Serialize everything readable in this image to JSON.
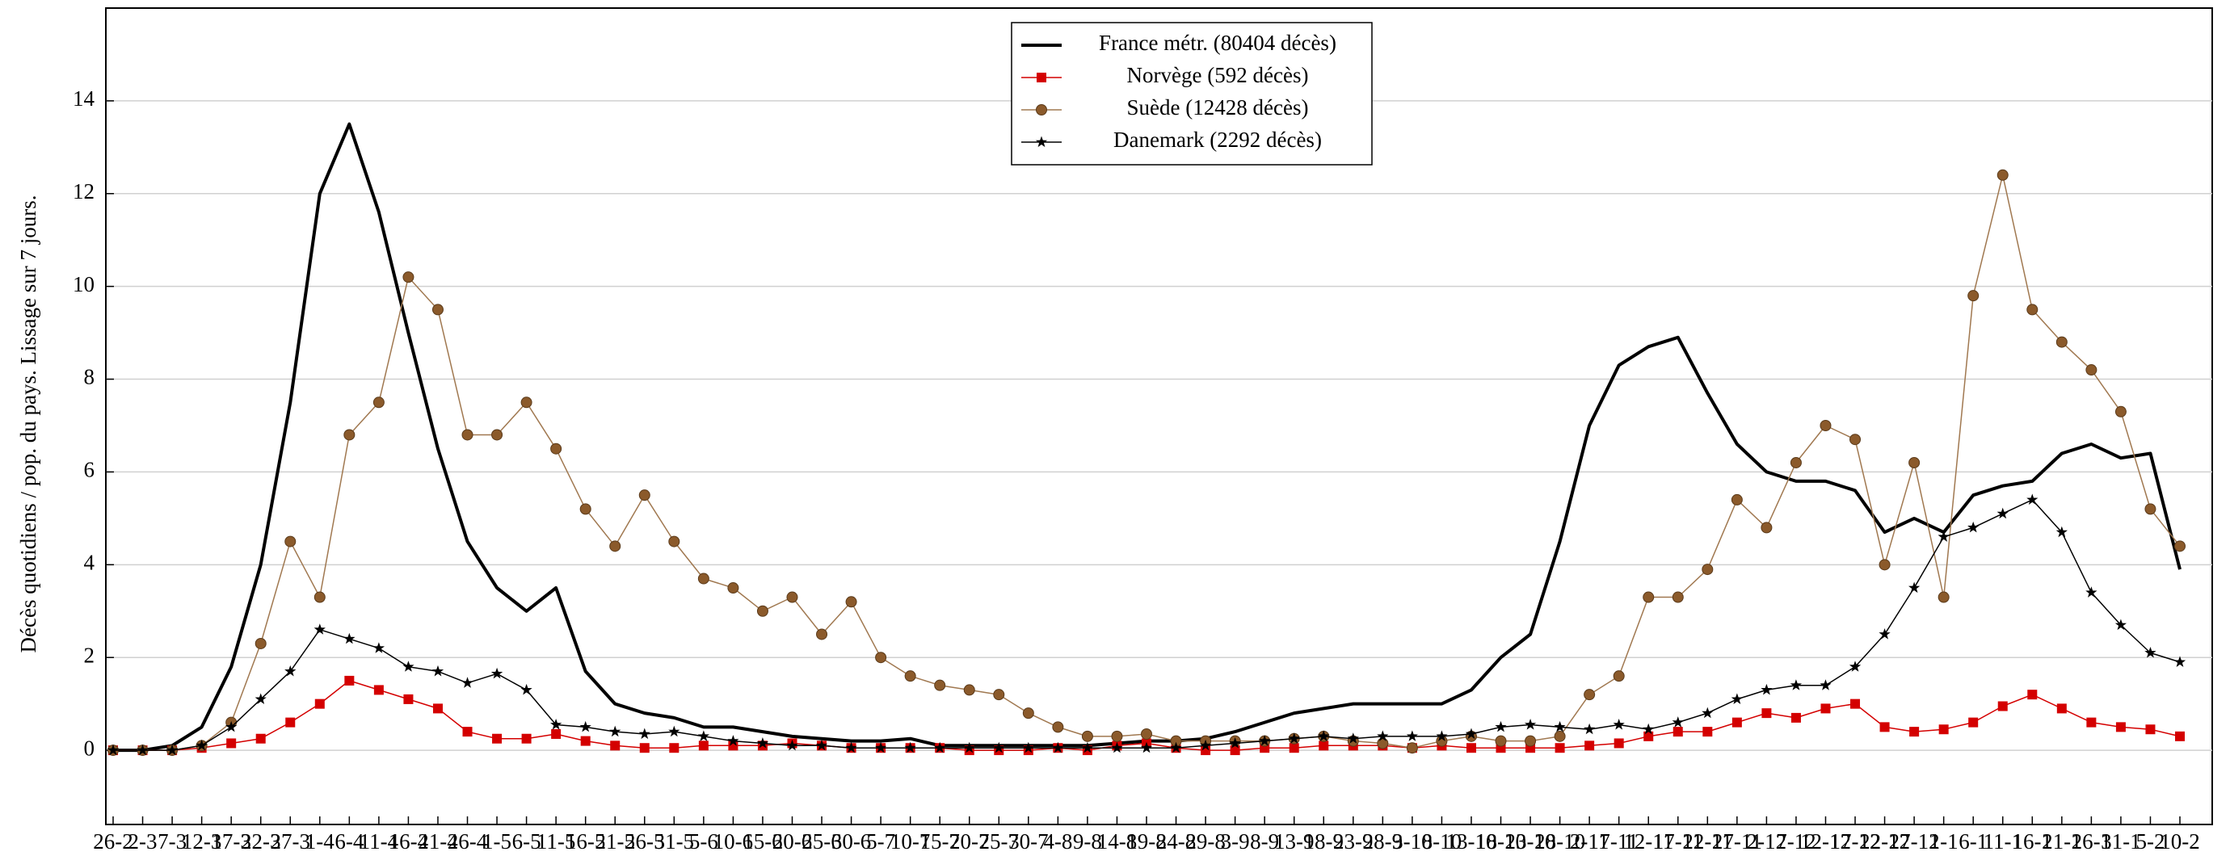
{
  "chart_data": {
    "type": "line",
    "ylabel": "Décès quotidiens / pop. du pays. Lissage sur 7 jours.",
    "categories": [
      "26-2",
      "2-3",
      "7-3",
      "12-3",
      "17-3",
      "22-3",
      "27-3",
      "1-4",
      "6-4",
      "11-4",
      "16-4",
      "21-4",
      "26-4",
      "1-5",
      "6-5",
      "11-5",
      "16-5",
      "21-5",
      "26-5",
      "31-5",
      "5-6",
      "10-6",
      "15-6",
      "20-6",
      "25-6",
      "30-6",
      "5-7",
      "10-7",
      "15-7",
      "20-7",
      "25-7",
      "30-7",
      "4-8",
      "9-8",
      "14-8",
      "19-8",
      "24-8",
      "29-8",
      "3-9",
      "8-9",
      "13-9",
      "18-9",
      "23-9",
      "28-9",
      "3-10",
      "8-10",
      "13-10",
      "18-10",
      "23-10",
      "28-10",
      "2-11",
      "7-11",
      "12-11",
      "17-11",
      "22-11",
      "27-11",
      "2-12",
      "7-12",
      "12-12",
      "17-12",
      "22-12",
      "27-12",
      "1-1",
      "6-1",
      "11-1",
      "16-1",
      "21-1",
      "26-1",
      "31-1",
      "5-2",
      "10-2"
    ],
    "series": [
      {
        "name": "France métr. (80404 décès)",
        "color": "#000000",
        "marker": "none",
        "values": [
          0,
          0,
          0.1,
          0.5,
          1.8,
          4,
          7.5,
          12,
          13.5,
          11.6,
          9,
          6.5,
          4.5,
          3.5,
          3,
          3.5,
          1.7,
          1,
          0.8,
          0.7,
          0.5,
          0.5,
          0.4,
          0.3,
          0.25,
          0.2,
          0.2,
          0.25,
          0.1,
          0.1,
          0.1,
          0.1,
          0.1,
          0.1,
          0.15,
          0.2,
          0.2,
          0.25,
          0.4,
          0.6,
          0.8,
          0.9,
          1.0,
          1.0,
          1.0,
          1.0,
          1.3,
          2.0,
          2.5,
          4.5,
          7.0,
          8.3,
          8.7,
          8.9,
          7.7,
          6.6,
          6.0,
          5.8,
          5.8,
          5.6,
          4.7,
          5.0,
          4.7,
          5.5,
          5.7,
          5.8,
          6.4,
          6.6,
          6.3,
          6.4,
          3.9
        ]
      },
      {
        "name": "Norvège (592 décès)",
        "color": "#d40000",
        "marker": "square",
        "values": [
          0,
          0,
          0,
          0.05,
          0.15,
          0.25,
          0.6,
          1.0,
          1.5,
          1.3,
          1.1,
          0.9,
          0.4,
          0.25,
          0.25,
          0.35,
          0.2,
          0.1,
          0.05,
          0.05,
          0.1,
          0.1,
          0.1,
          0.15,
          0.1,
          0.05,
          0.05,
          0.05,
          0.05,
          0,
          0,
          0,
          0.05,
          0,
          0.1,
          0.15,
          0.05,
          0,
          0,
          0.05,
          0.05,
          0.1,
          0.1,
          0.1,
          0.05,
          0.1,
          0.05,
          0.05,
          0.05,
          0.05,
          0.1,
          0.15,
          0.3,
          0.4,
          0.4,
          0.6,
          0.8,
          0.7,
          0.9,
          1.0,
          0.5,
          0.4,
          0.45,
          0.6,
          0.95,
          1.2,
          0.9,
          0.6,
          0.5,
          0.45,
          0.3
        ]
      },
      {
        "name": "Suède (12428 décès)",
        "color": "#8b5a2b",
        "marker": "circle",
        "values": [
          0,
          0,
          0,
          0.1,
          0.6,
          2.3,
          4.5,
          3.3,
          6.8,
          7.5,
          10.2,
          9.5,
          6.8,
          6.8,
          7.5,
          6.5,
          5.2,
          4.4,
          5.5,
          4.5,
          3.7,
          3.5,
          3.0,
          3.3,
          2.5,
          3.2,
          2.0,
          1.6,
          1.4,
          1.3,
          1.2,
          0.8,
          0.5,
          0.3,
          0.3,
          0.35,
          0.2,
          0.2,
          0.2,
          0.2,
          0.25,
          0.3,
          0.2,
          0.15,
          0.05,
          0.2,
          0.3,
          0.2,
          0.2,
          0.3,
          1.2,
          1.6,
          3.3,
          3.3,
          3.9,
          5.4,
          4.8,
          6.2,
          7.0,
          6.7,
          4.0,
          6.2,
          3.3,
          9.8,
          12.4,
          9.5,
          8.8,
          8.2,
          7.3,
          5.2,
          4.4
        ]
      },
      {
        "name": "Danemark (2292 décès)",
        "color": "#000000",
        "marker": "star",
        "values": [
          0,
          0,
          0,
          0.1,
          0.5,
          1.1,
          1.7,
          2.6,
          2.4,
          2.2,
          1.8,
          1.7,
          1.45,
          1.65,
          1.3,
          0.55,
          0.5,
          0.4,
          0.35,
          0.4,
          0.3,
          0.2,
          0.15,
          0.1,
          0.1,
          0.05,
          0.05,
          0.05,
          0.05,
          0.05,
          0.05,
          0.05,
          0.05,
          0.05,
          0.05,
          0.05,
          0.05,
          0.1,
          0.15,
          0.2,
          0.25,
          0.3,
          0.25,
          0.3,
          0.3,
          0.3,
          0.35,
          0.5,
          0.55,
          0.5,
          0.45,
          0.55,
          0.45,
          0.6,
          0.8,
          1.1,
          1.3,
          1.4,
          1.4,
          1.8,
          2.5,
          3.5,
          4.6,
          4.8,
          5.1,
          5.4,
          4.7,
          3.4,
          2.7,
          2.1,
          1.9
        ]
      }
    ],
    "ylim": [
      -1.6,
      16
    ],
    "yticks": [
      0,
      2,
      4,
      6,
      8,
      10,
      12,
      14
    ],
    "grid": true,
    "legend": "top"
  }
}
